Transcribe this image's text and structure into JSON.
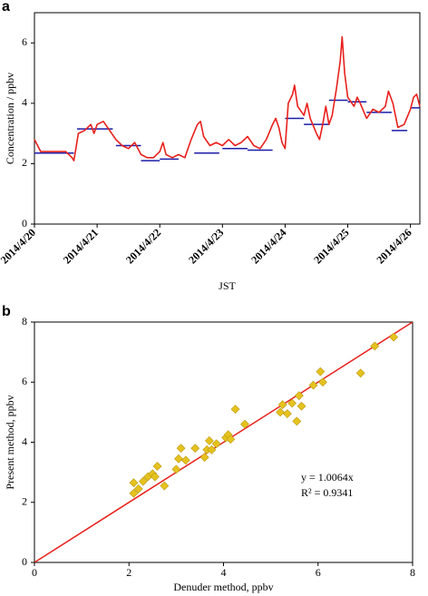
{
  "chart_data": [
    {
      "type": "line",
      "panel_label": "a",
      "y_label": "Concentration / ppbv",
      "x_label": "JST",
      "xlim": [
        0,
        6.15
      ],
      "xticks": [
        {
          "value": 0,
          "label": "2014/4/20"
        },
        {
          "value": 1,
          "label": "2014/4/21"
        },
        {
          "value": 2,
          "label": "2014/4/22"
        },
        {
          "value": 3,
          "label": "2014/4/23"
        },
        {
          "value": 4,
          "label": "2014/4/24"
        },
        {
          "value": 5,
          "label": "2014/4/25"
        },
        {
          "value": 6,
          "label": "2014/4/26"
        }
      ],
      "ylim": [
        0,
        7
      ],
      "yticks": [
        0,
        2,
        4,
        6
      ],
      "x": [
        0,
        0.1,
        0.5,
        0.55,
        0.6,
        0.63,
        0.7,
        0.8,
        0.9,
        0.95,
        1.0,
        1.1,
        1.2,
        1.3,
        1.4,
        1.5,
        1.6,
        1.7,
        1.8,
        1.9,
        2.0,
        2.05,
        2.1,
        2.2,
        2.3,
        2.4,
        2.5,
        2.6,
        2.65,
        2.7,
        2.8,
        2.9,
        3.0,
        3.1,
        3.2,
        3.3,
        3.4,
        3.5,
        3.6,
        3.7,
        3.8,
        3.85,
        3.9,
        3.95,
        4.0,
        4.05,
        4.12,
        4.15,
        4.2,
        4.3,
        4.35,
        4.4,
        4.5,
        4.55,
        4.6,
        4.65,
        4.7,
        4.75,
        4.82,
        4.88,
        4.91,
        4.95,
        5.0,
        5.1,
        5.15,
        5.2,
        5.3,
        5.4,
        5.5,
        5.6,
        5.65,
        5.72,
        5.8,
        5.9,
        6.0,
        6.05,
        6.1,
        6.15
      ],
      "series": [
        {
          "color": "#e8201c",
          "values": [
            2.8,
            2.4,
            2.4,
            2.3,
            2.2,
            2.1,
            3.0,
            3.1,
            3.3,
            3.0,
            3.3,
            3.4,
            3.1,
            2.8,
            2.6,
            2.5,
            2.7,
            2.3,
            2.2,
            2.2,
            2.4,
            2.7,
            2.3,
            2.2,
            2.3,
            2.2,
            2.8,
            3.3,
            3.4,
            2.9,
            2.6,
            2.7,
            2.6,
            2.8,
            2.6,
            2.7,
            2.9,
            2.6,
            2.5,
            2.8,
            3.3,
            3.5,
            3.2,
            2.7,
            2.5,
            4.0,
            4.3,
            4.6,
            3.9,
            3.6,
            4.0,
            3.5,
            3.0,
            2.8,
            3.3,
            3.9,
            3.3,
            3.6,
            4.5,
            5.4,
            6.2,
            5.0,
            4.2,
            3.9,
            4.2,
            4.0,
            3.5,
            3.8,
            3.7,
            3.9,
            4.4,
            4.0,
            3.2,
            3.3,
            3.8,
            4.2,
            4.3,
            3.9
          ]
        }
      ],
      "segment_color": "#1c1ca8",
      "segments": [
        {
          "x": [
            0,
            0.63
          ],
          "value": 2.35
        },
        {
          "x": [
            0.68,
            1.25
          ],
          "value": 3.15
        },
        {
          "x": [
            1.3,
            1.7
          ],
          "value": 2.6
        },
        {
          "x": [
            1.7,
            2.0
          ],
          "value": 2.1
        },
        {
          "x": [
            2.0,
            2.3
          ],
          "value": 2.15
        },
        {
          "x": [
            2.55,
            2.95
          ],
          "value": 2.35
        },
        {
          "x": [
            3.0,
            3.4
          ],
          "value": 2.5
        },
        {
          "x": [
            3.4,
            3.8
          ],
          "value": 2.45
        },
        {
          "x": [
            4.0,
            4.3
          ],
          "value": 3.5
        },
        {
          "x": [
            4.3,
            4.7
          ],
          "value": 3.3
        },
        {
          "x": [
            4.7,
            5.0
          ],
          "value": 4.1
        },
        {
          "x": [
            5.0,
            5.3
          ],
          "value": 4.05
        },
        {
          "x": [
            5.3,
            5.7
          ],
          "value": 3.7
        },
        {
          "x": [
            5.7,
            5.95
          ],
          "value": 3.1
        },
        {
          "x": [
            6.0,
            6.15
          ],
          "value": 3.85
        }
      ]
    },
    {
      "type": "scatter",
      "panel_label": "b",
      "x_label": "Denuder method, ppbv",
      "y_label": "Present method, ppbv",
      "xlim": [
        0,
        8
      ],
      "xticks": [
        0,
        2,
        4,
        6,
        8
      ],
      "ylim": [
        0,
        8
      ],
      "yticks": [
        0,
        2,
        4,
        6,
        8
      ],
      "color": "#e6c21e",
      "x": [
        2.1,
        2.1,
        2.2,
        2.3,
        2.4,
        2.5,
        2.55,
        2.6,
        2.75,
        3.0,
        3.05,
        3.1,
        3.2,
        3.4,
        3.6,
        3.65,
        3.7,
        3.75,
        3.85,
        4.05,
        4.1,
        4.15,
        4.25,
        4.45,
        5.2,
        5.25,
        5.35,
        5.45,
        5.55,
        5.6,
        5.65,
        5.9,
        6.05,
        6.1,
        6.9,
        7.2,
        7.6
      ],
      "values": [
        2.3,
        2.65,
        2.45,
        2.7,
        2.85,
        2.95,
        2.85,
        3.2,
        2.55,
        3.1,
        3.45,
        3.8,
        3.4,
        3.8,
        3.5,
        3.75,
        4.05,
        3.75,
        3.95,
        4.15,
        4.25,
        4.1,
        5.1,
        4.6,
        5.0,
        5.25,
        4.95,
        5.3,
        4.7,
        5.55,
        5.2,
        5.9,
        6.35,
        6.0,
        6.3,
        7.2,
        7.5
      ],
      "fit_line": {
        "color": "#e8201c",
        "x": [
          0,
          8
        ],
        "y": [
          0,
          8
        ]
      },
      "annotations": [
        "y = 1.0064x",
        "R² = 0.9341"
      ]
    }
  ]
}
